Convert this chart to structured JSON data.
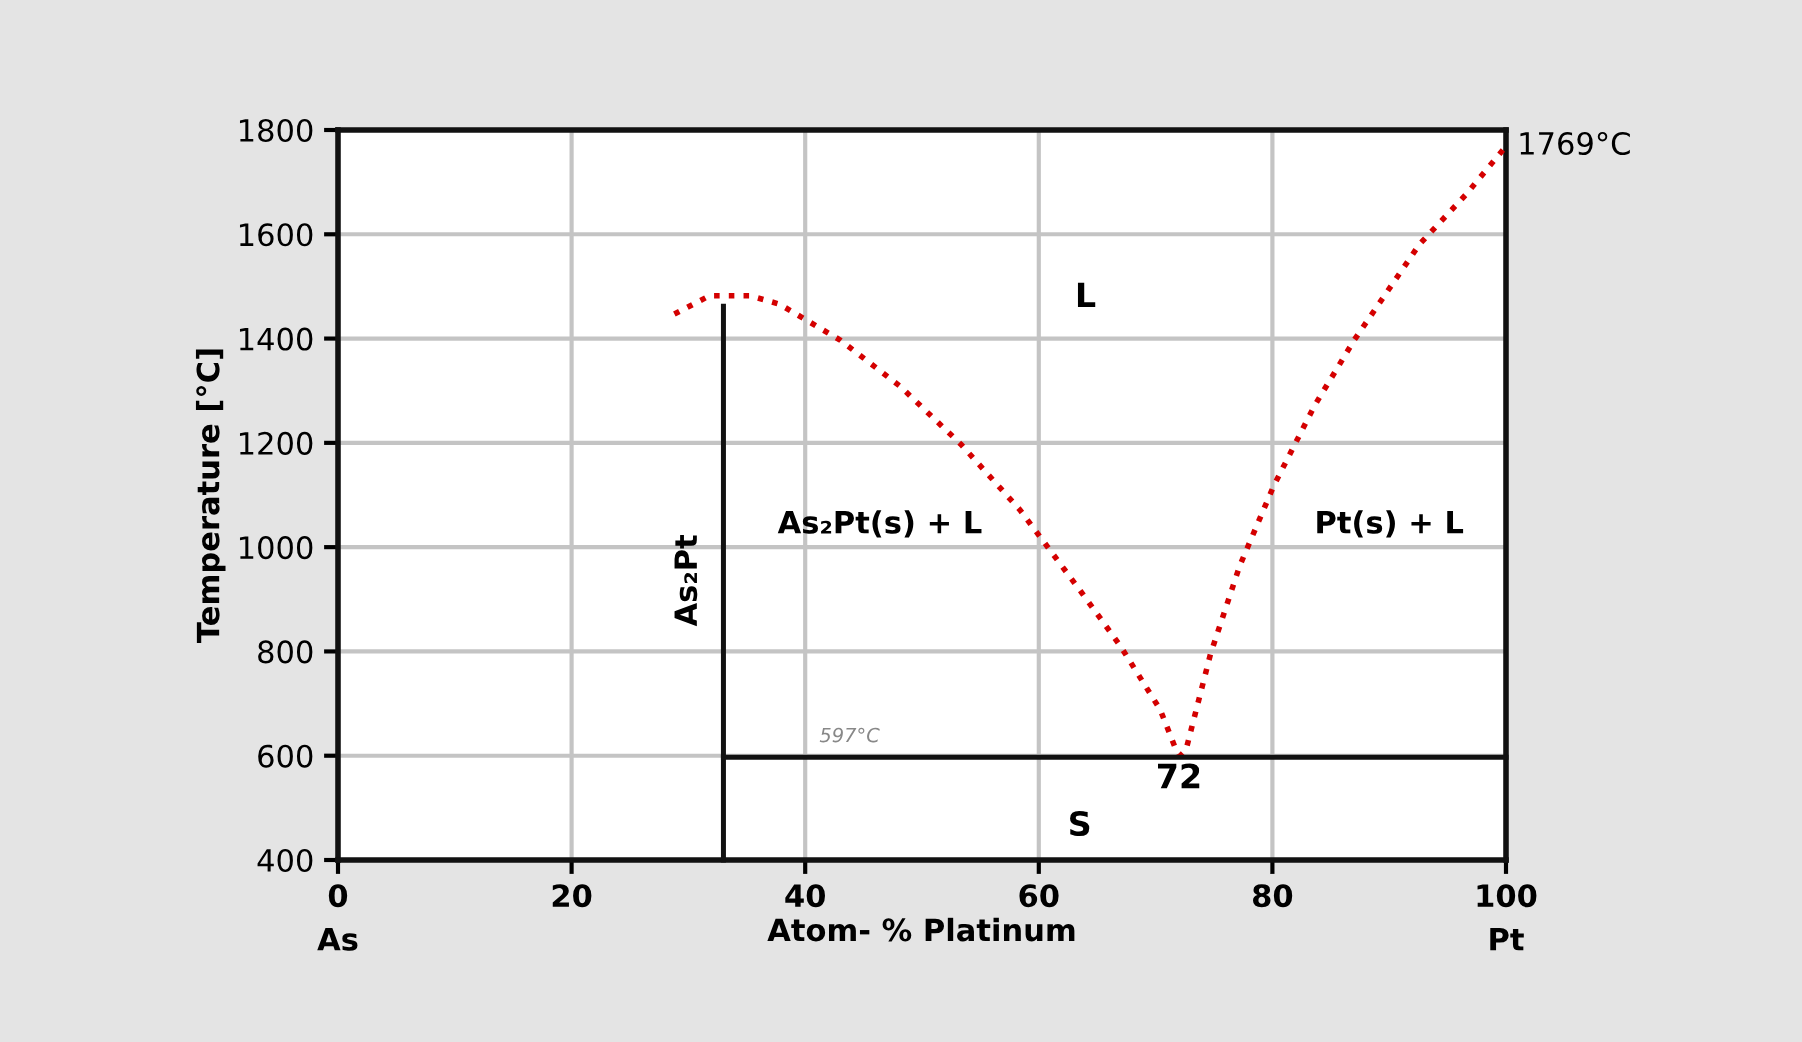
{
  "chart_data": {
    "type": "line",
    "xlabel": "Atom- % Platinum",
    "ylabel": "Temperature [°C]",
    "xlim": [
      0,
      100
    ],
    "ylim": [
      400,
      1800
    ],
    "xticks": [
      {
        "value": 0,
        "label": "0\nAs"
      },
      20,
      40,
      60,
      80,
      {
        "value": 100,
        "label": "100\nPt"
      }
    ],
    "yticks": [
      400,
      600,
      800,
      1000,
      1200,
      1400,
      1600,
      1800
    ],
    "grid": true,
    "marker": "none",
    "series": [
      {
        "color": "#d40000",
        "line_style": "dotted",
        "x": [
          28.8,
          31.8,
          35.3,
          37.8,
          43,
          48.1,
          53.3,
          58.4,
          63.5,
          67,
          70.4,
          72
        ],
        "values": [
          1447,
          1482,
          1482,
          1466,
          1397,
          1309,
          1198,
          1071,
          918,
          810,
          688,
          597
        ]
      },
      {
        "color": "#d40000",
        "line_style": "dotted",
        "x": [
          72,
          72.6,
          74.7,
          77.2,
          80.1,
          83.6,
          87,
          92.6,
          96.6,
          100
        ],
        "values": [
          597,
          611,
          795,
          964,
          1117,
          1271,
          1397,
          1581,
          1677,
          1769
        ]
      },
      {
        "color": "#111111",
        "line_style": "solid",
        "x": [
          33,
          33
        ],
        "values": [
          400,
          1462
        ]
      },
      {
        "color": "#111111",
        "line_style": "solid",
        "x": [
          33,
          100
        ],
        "values": [
          597,
          597
        ]
      }
    ],
    "annotations": [
      "L",
      "As₂Pt(s) + L",
      "Pt(s) + L",
      "As₂Pt",
      {
        "text": "597°C",
        "x": 43.8,
        "y": 597
      },
      {
        "text": "72",
        "x": 72,
        "y": 597
      },
      "S",
      {
        "text": "1769°C",
        "x": 100,
        "y": 1769
      }
    ]
  }
}
